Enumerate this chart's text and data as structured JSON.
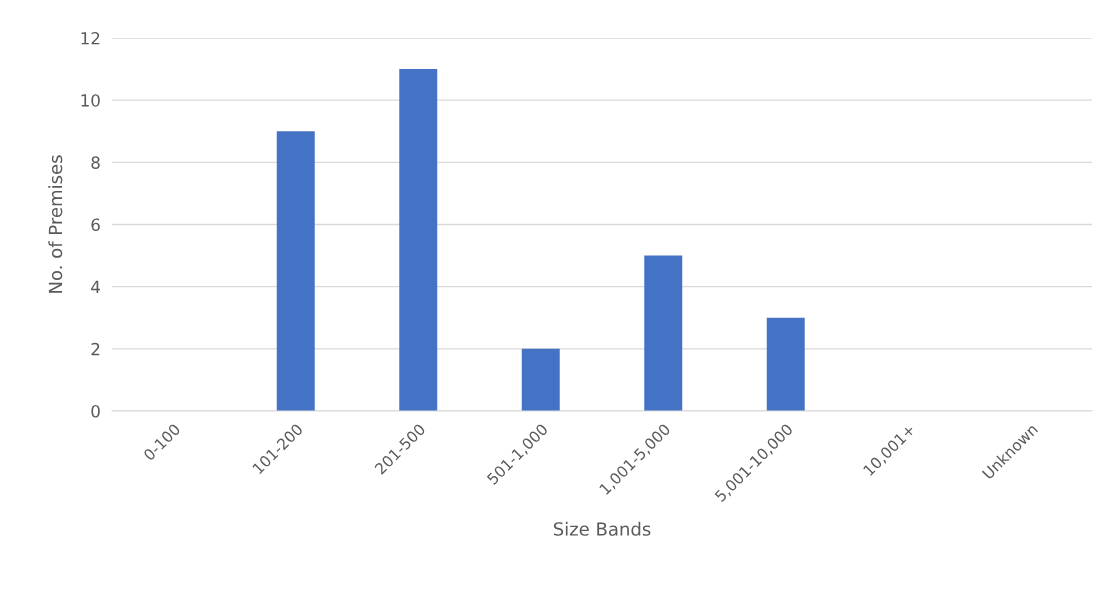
{
  "chart_data": {
    "type": "bar",
    "xlabel": "Size Bands",
    "ylabel": "No. of Premises",
    "categories": [
      "0-100",
      "101-200",
      "201-500",
      "501-1,000",
      "1,001-5,000",
      "5,001-10,000",
      "10,001+",
      "Unknown"
    ],
    "values": [
      0,
      9,
      11,
      2,
      5,
      3,
      0,
      0
    ],
    "color": "#4472c4",
    "ylim": [
      0,
      12
    ],
    "yticks": [
      0,
      2,
      4,
      6,
      8,
      10,
      12
    ],
    "grid": "y",
    "legend": false
  }
}
